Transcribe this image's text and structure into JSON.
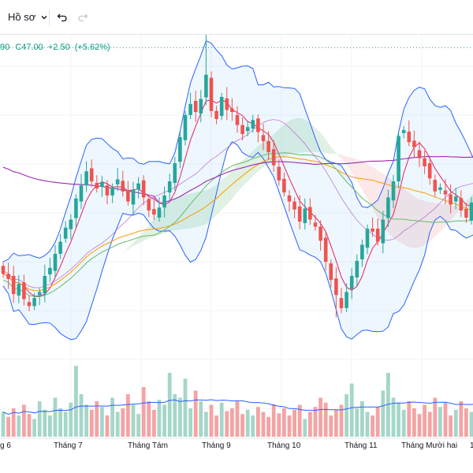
{
  "toolbar": {
    "profile_label": "Hồ sơ",
    "chevron": "chevron-down-icon",
    "undo": "undo-icon",
    "redo": "redo-icon"
  },
  "legend": {
    "close_prefix_partial": "90",
    "close_label": "C",
    "close_value": "47.00",
    "change": "+2.50",
    "change_pct": "(+5.62%)"
  },
  "colors": {
    "up": "#26a69a",
    "down": "#ef5350",
    "up_volume": "#a5d6c9",
    "down_volume": "#f4a3a3",
    "bollinger": "#2962ff",
    "cloud_up": "#d5ecd9",
    "cloud_down": "#fbe0e0",
    "ma_purple": "#9c27b0",
    "ma_orange": "#ff9800",
    "ma_red": "#e91e63"
  },
  "chart_data": {
    "type": "candlestick",
    "x_axis_labels": [
      "g 6",
      "Tháng 7",
      "Tháng Tám",
      "Tháng 9",
      "Tháng 10",
      "Tháng 11",
      "Tháng Mười hai",
      "1"
    ],
    "closes": [
      28,
      27.5,
      26,
      27,
      25.5,
      24.8,
      25.6,
      26.2,
      27.8,
      28.6,
      30,
      31.2,
      32.6,
      33.4,
      35.5,
      36.8,
      38.2,
      37.2,
      36.5,
      37.1,
      35.8,
      36.6,
      37.4,
      36.2,
      35.2,
      36.4,
      37,
      35.6,
      34.3,
      33.9,
      34.6,
      35.8,
      37.2,
      39,
      41.6,
      43.8,
      44.9,
      44.1,
      45.4,
      47.8,
      44.2,
      43.4,
      45.6,
      44.3,
      44.1,
      42.8,
      41.9,
      42.6,
      43.3,
      42.1,
      41.2,
      40.1,
      38.8,
      37.3,
      36.1,
      35.2,
      34.4,
      33.2,
      34.5,
      33.4,
      32.7,
      31.3,
      29.2,
      27.4,
      25.9,
      24.6,
      26.2,
      27.8,
      29.3,
      30.9,
      32.5,
      32.2,
      31.2,
      33.4,
      35.6,
      37.2,
      41.7,
      42.3,
      41.1,
      40.6,
      39.5,
      38.7,
      37.5,
      36.2,
      36.6,
      35.9,
      34.9,
      35.7,
      34.3,
      33.6,
      35.1,
      34.6
    ],
    "volumes": [
      0.35,
      0.28,
      0.4,
      0.3,
      0.45,
      0.32,
      0.25,
      0.5,
      0.38,
      0.3,
      0.55,
      0.4,
      0.35,
      0.48,
      1.0,
      0.6,
      0.45,
      0.38,
      0.5,
      0.42,
      0.3,
      0.55,
      0.35,
      0.4,
      0.6,
      0.45,
      0.32,
      0.7,
      0.5,
      0.38,
      0.52,
      0.45,
      0.9,
      0.6,
      0.55,
      0.82,
      0.4,
      0.65,
      0.5,
      0.35,
      0.45,
      0.3,
      0.48,
      0.36,
      0.4,
      0.5,
      0.32,
      0.38,
      0.3,
      0.42,
      0.35,
      0.28,
      0.46,
      0.33,
      0.4,
      0.3,
      0.38,
      0.45,
      0.25,
      0.35,
      0.42,
      0.55,
      0.48,
      0.3,
      0.38,
      0.45,
      0.6,
      0.75,
      0.4,
      0.5,
      0.35,
      0.3,
      0.42,
      0.65,
      0.9,
      0.55,
      0.48,
      0.38,
      0.5,
      0.4,
      0.32,
      0.45,
      0.35,
      0.55,
      0.42,
      0.48,
      0.3,
      0.38,
      0.5,
      0.4,
      0.35,
      0.45
    ],
    "y_range": [
      22,
      51
    ],
    "ref_line": 50.5,
    "grid": true
  }
}
